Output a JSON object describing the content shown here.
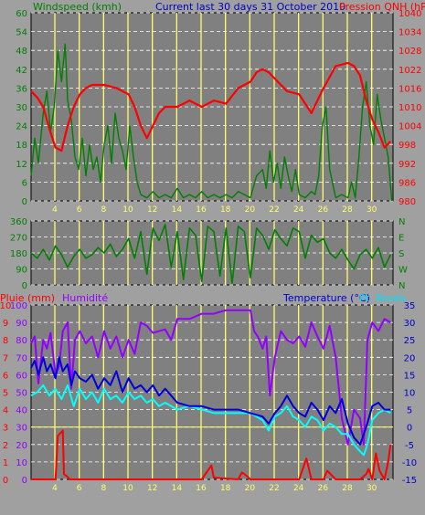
{
  "chart_data": [
    {
      "type": "line",
      "title": "Current last 30 days 31 October 2010",
      "left_axis_label": "Windspeed (kmh)",
      "right_axis_label": "Pression QNH (hPa)",
      "x_ticks": [
        4,
        6,
        8,
        10,
        12,
        14,
        16,
        18,
        20,
        22,
        24,
        26,
        28,
        30
      ],
      "xlim": [
        1,
        30.7
      ],
      "left_ticks": [
        0,
        6,
        12,
        18,
        24,
        30,
        36,
        42,
        48,
        54,
        60
      ],
      "left_range": [
        0,
        60
      ],
      "right_ticks": [
        980,
        986,
        992,
        998,
        1004,
        1010,
        1016,
        1022,
        1028,
        1034,
        1040
      ],
      "right_range": [
        980,
        1040
      ],
      "series": [
        {
          "name": "Windspeed (kmh)",
          "axis": "left",
          "color": "#008000",
          "x": [
            1.0,
            1.3,
            1.6,
            2.0,
            2.3,
            2.6,
            2.9,
            3.2,
            3.5,
            3.8,
            4.0,
            4.3,
            4.6,
            4.9,
            5.2,
            5.5,
            5.8,
            6.1,
            6.4,
            6.7,
            7.0,
            7.3,
            7.6,
            7.9,
            8.2,
            8.5,
            8.8,
            9.1,
            9.4,
            9.7,
            10.0,
            10.5,
            11.0,
            11.5,
            12.0,
            12.5,
            13.0,
            13.5,
            14.0,
            14.5,
            15.0,
            15.5,
            16.0,
            16.5,
            17.0,
            17.5,
            18.0,
            18.5,
            19.0,
            19.5,
            20.0,
            20.3,
            20.6,
            20.9,
            21.2,
            21.5,
            21.8,
            22.1,
            22.4,
            22.7,
            23.0,
            23.5,
            24.0,
            24.3,
            24.6,
            24.9,
            25.2,
            25.5,
            26.0,
            26.5,
            27.0,
            27.3,
            27.6,
            27.9,
            28.2,
            28.5,
            28.8,
            29.1,
            29.4,
            29.7,
            30.0,
            30.3,
            30.6
          ],
          "y": [
            8,
            20,
            12,
            28,
            35,
            22,
            30,
            48,
            38,
            50,
            32,
            26,
            14,
            10,
            20,
            8,
            18,
            10,
            14,
            6,
            18,
            24,
            12,
            28,
            20,
            16,
            10,
            24,
            14,
            6,
            2,
            1,
            3,
            1,
            2,
            1,
            4,
            1,
            2,
            1,
            3,
            1,
            2,
            1,
            2,
            1,
            3,
            2,
            1,
            8,
            10,
            4,
            16,
            6,
            12,
            4,
            14,
            8,
            3,
            10,
            2,
            1,
            3,
            2,
            8,
            24,
            30,
            10,
            1,
            2,
            1,
            6,
            1,
            14,
            30,
            38,
            24,
            18,
            34,
            26,
            20,
            14,
            0
          ]
        },
        {
          "name": "Pression QNH (hPa)",
          "axis": "right",
          "color": "#ff0000",
          "x": [
            1.0,
            1.5,
            2.0,
            2.5,
            3.0,
            3.5,
            4.0,
            4.5,
            5.0,
            5.5,
            6.0,
            7.0,
            8.0,
            9.0,
            9.5,
            10.0,
            10.5,
            11.0,
            11.5,
            12.0,
            13.0,
            14.0,
            15.0,
            16.0,
            17.0,
            18.0,
            18.5,
            19.0,
            19.5,
            20.0,
            20.5,
            21.0,
            22.0,
            23.0,
            23.5,
            24.0,
            24.5,
            25.0,
            26.0,
            27.0,
            27.5,
            28.0,
            28.5,
            29.0,
            29.5,
            30.0,
            30.5
          ],
          "y": [
            1015,
            1013,
            1010,
            1003,
            997,
            996,
            1004,
            1010,
            1014,
            1016,
            1017,
            1017,
            1016,
            1014,
            1010,
            1004,
            1000,
            1004,
            1008,
            1010,
            1010,
            1012,
            1010,
            1012,
            1011,
            1016,
            1017,
            1018,
            1021,
            1022,
            1021,
            1019,
            1015,
            1014,
            1011,
            1008,
            1012,
            1016,
            1023,
            1024,
            1023,
            1020,
            1012,
            1006,
            1002,
            997,
            999
          ]
        }
      ]
    },
    {
      "type": "line",
      "x_ticks": [
        4,
        6,
        8,
        10,
        12,
        14,
        16,
        18,
        20,
        22,
        24,
        26,
        28,
        30
      ],
      "xlim": [
        1,
        30.7
      ],
      "left_ticks": [
        0,
        90,
        180,
        270,
        360
      ],
      "left_range": [
        0,
        360
      ],
      "right_ticks": [
        "N",
        "W",
        "S",
        "E",
        "N"
      ],
      "series": [
        {
          "name": "Wind direction",
          "axis": "left",
          "color": "#008000",
          "x": [
            1.0,
            1.5,
            2.0,
            2.5,
            3.0,
            3.5,
            4.0,
            4.5,
            5.0,
            5.5,
            6.0,
            6.5,
            7.0,
            7.5,
            8.0,
            8.5,
            9.0,
            9.5,
            10.0,
            10.5,
            11.0,
            11.5,
            12.0,
            12.5,
            13.0,
            13.5,
            14.0,
            14.5,
            15.0,
            15.5,
            16.0,
            16.5,
            17.0,
            17.5,
            18.0,
            18.5,
            19.0,
            19.5,
            20.0,
            20.5,
            21.0,
            21.5,
            22.0,
            22.5,
            23.0,
            23.5,
            24.0,
            24.5,
            25.0,
            25.5,
            26.0,
            26.5,
            27.0,
            27.5,
            28.0,
            28.5,
            29.0,
            29.5,
            30.0,
            30.5
          ],
          "y": [
            180,
            150,
            200,
            140,
            220,
            170,
            100,
            160,
            200,
            150,
            170,
            210,
            180,
            230,
            160,
            200,
            260,
            150,
            300,
            60,
            320,
            250,
            340,
            100,
            300,
            30,
            320,
            280,
            20,
            330,
            300,
            50,
            320,
            10,
            330,
            300,
            40,
            320,
            280,
            200,
            310,
            260,
            220,
            320,
            300,
            150,
            280,
            240,
            260,
            180,
            150,
            200,
            140,
            90,
            170,
            200,
            150,
            210,
            100,
            170
          ]
        }
      ]
    },
    {
      "type": "line",
      "left_axis_label_red": "Pluie (mm)",
      "left_axis_label_purple": "Humidité",
      "right_axis_label_blue": "Temperature (°C)",
      "right_axis_label_cyan": "Pt. Rosée",
      "x_ticks": [
        4,
        6,
        8,
        10,
        12,
        14,
        16,
        18,
        20,
        22,
        24,
        26,
        28,
        30
      ],
      "xlim": [
        1,
        30.7
      ],
      "rain_ticks": [
        0,
        1,
        2,
        3,
        4,
        5,
        6,
        7,
        8,
        9,
        10
      ],
      "rain_range": [
        0,
        10
      ],
      "humidity_ticks": [
        0,
        10,
        20,
        30,
        40,
        50,
        60,
        70,
        80,
        90,
        100
      ],
      "humidity_range": [
        0,
        100
      ],
      "temperature_ticks": [
        -15,
        -10,
        -5,
        0,
        5,
        10,
        15,
        20,
        25,
        30,
        35
      ],
      "temperature_range": [
        -15,
        35
      ],
      "zero_line_temperature": 0,
      "series": [
        {
          "name": "Pluie (mm)",
          "axis": "rain",
          "color": "#ff0000",
          "x": [
            1.0,
            2.0,
            3.0,
            3.2,
            3.6,
            3.7,
            3.9,
            4.2,
            5.0,
            10.0,
            15.0,
            15.5,
            15.8,
            16.0,
            18.0,
            18.3,
            18.7,
            19.0,
            23.0,
            23.3,
            23.6,
            24.0,
            25.0,
            25.3,
            26.0,
            28.0,
            28.5,
            28.7,
            29.0,
            29.3,
            29.6,
            30.0,
            30.3,
            30.5
          ],
          "y": [
            0,
            0,
            0,
            2.5,
            2.8,
            0.3,
            0.2,
            0,
            0,
            0,
            0,
            0.5,
            0.8,
            0.1,
            0,
            0.4,
            0.2,
            0,
            0,
            0.6,
            1.2,
            0,
            0,
            0.5,
            0,
            0,
            0.3,
            0.6,
            0,
            1.5,
            0.5,
            0,
            1.0,
            2.0
          ]
        },
        {
          "name": "Humidité",
          "axis": "humidity",
          "color": "#9400ff",
          "x": [
            1.0,
            1.3,
            1.6,
            2.0,
            2.3,
            2.6,
            3.0,
            3.3,
            3.6,
            4.0,
            4.3,
            4.6,
            5.0,
            5.5,
            6.0,
            6.5,
            7.0,
            7.5,
            8.0,
            8.5,
            9.0,
            9.5,
            10.0,
            10.5,
            11.0,
            12.0,
            12.5,
            13.0,
            14.0,
            15.0,
            16.0,
            16.5,
            17.0,
            18.0,
            18.5,
            19.0,
            19.3,
            19.6,
            20.0,
            20.3,
            20.6,
            21.0,
            21.5,
            22.0,
            22.5,
            23.0,
            23.5,
            24.0,
            24.5,
            25.0,
            25.5,
            26.0,
            26.5,
            27.0,
            27.5,
            28.0,
            28.3,
            28.6,
            29.0,
            29.5,
            30.0,
            30.5
          ],
          "y": [
            78,
            82,
            55,
            80,
            75,
            84,
            60,
            65,
            85,
            90,
            52,
            80,
            85,
            78,
            82,
            70,
            85,
            75,
            82,
            70,
            80,
            72,
            90,
            88,
            84,
            86,
            80,
            92,
            92,
            95,
            95,
            96,
            97,
            97,
            97,
            97,
            85,
            82,
            75,
            82,
            48,
            70,
            85,
            80,
            78,
            82,
            76,
            90,
            82,
            75,
            88,
            70,
            35,
            20,
            40,
            35,
            20,
            80,
            90,
            85,
            92,
            90
          ]
        },
        {
          "name": "Temperature (°C)",
          "axis": "temperature",
          "color": "#0000dd",
          "x": [
            1.0,
            1.3,
            1.6,
            2.0,
            2.3,
            2.6,
            3.0,
            3.3,
            3.6,
            4.0,
            4.3,
            4.6,
            5.0,
            5.5,
            6.0,
            6.5,
            7.0,
            7.5,
            8.0,
            8.5,
            9.0,
            9.5,
            10.0,
            10.5,
            11.0,
            11.5,
            12.0,
            13.0,
            14.0,
            15.0,
            16.0,
            17.0,
            18.0,
            19.0,
            20.0,
            20.5,
            21.0,
            21.5,
            22.0,
            22.5,
            23.0,
            23.5,
            24.0,
            24.5,
            25.0,
            25.5,
            26.0,
            26.5,
            27.0,
            27.5,
            28.0,
            28.5,
            29.0,
            29.5,
            30.0,
            30.5
          ],
          "y": [
            17,
            19,
            15,
            20,
            16,
            18,
            14,
            20,
            16,
            18,
            12,
            16,
            14,
            13,
            15,
            11,
            14,
            12,
            16,
            10,
            14,
            11,
            12,
            10,
            12,
            9,
            11,
            7,
            6,
            6,
            5,
            5,
            5,
            4,
            3,
            1,
            4,
            6,
            9,
            6,
            4,
            3,
            7,
            5,
            2,
            6,
            4,
            8,
            1,
            -3,
            -5,
            0,
            6,
            7,
            5,
            5
          ]
        },
        {
          "name": "Pt. Rosée",
          "axis": "temperature",
          "color": "#00ffff",
          "x": [
            1.0,
            1.5,
            2.0,
            2.5,
            3.0,
            3.5,
            4.0,
            4.5,
            5.0,
            5.5,
            6.0,
            6.5,
            7.0,
            7.5,
            8.0,
            8.5,
            9.0,
            9.5,
            10.0,
            10.5,
            11.0,
            11.5,
            12.0,
            13.0,
            14.0,
            15.0,
            16.0,
            17.0,
            18.0,
            19.0,
            20.0,
            20.5,
            21.0,
            21.5,
            22.0,
            22.5,
            23.0,
            23.5,
            24.0,
            24.5,
            25.0,
            25.5,
            26.0,
            26.5,
            27.0,
            27.5,
            28.0,
            28.3,
            28.6,
            29.0,
            29.5,
            30.0,
            30.5
          ],
          "y": [
            9,
            10,
            12,
            9,
            11,
            8,
            12,
            6,
            11,
            8,
            10,
            7,
            11,
            8,
            9,
            7,
            10,
            8,
            9,
            7,
            8,
            6,
            7,
            5,
            6,
            5,
            4,
            4,
            4,
            4,
            2,
            -1,
            3,
            4,
            6,
            3,
            2,
            0,
            3,
            2,
            -1,
            1,
            0,
            -2,
            -2,
            -5,
            -7,
            -8,
            -5,
            2,
            4,
            5,
            4
          ]
        }
      ]
    }
  ]
}
